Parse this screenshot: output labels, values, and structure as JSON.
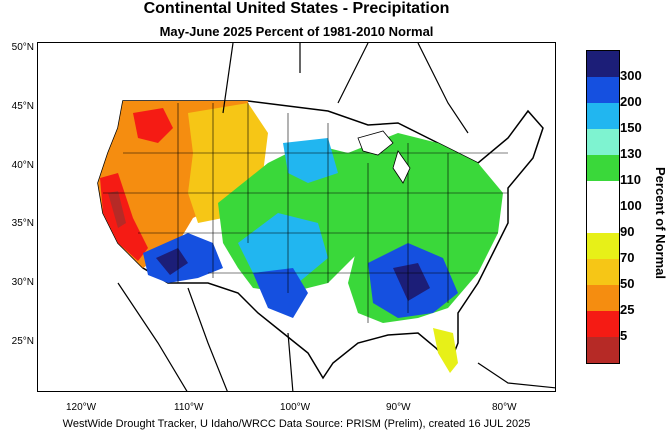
{
  "title": "Continental United States - Precipitation",
  "subtitle": "May-June 2025  Percent of 1981-2010 Normal",
  "footer": "WestWide Drought Tracker, U Idaho/WRCC Data Source: PRISM (Prelim), created 16 JUL 2025",
  "lat_labels": [
    "50°N",
    "45°N",
    "40°N",
    "35°N",
    "30°N",
    "25°N"
  ],
  "lon_labels": [
    "120°W",
    "110°W",
    "100°W",
    "90°W",
    "80°W"
  ],
  "legend": {
    "title": "Percent of Normal",
    "colors": [
      "#1c1e78",
      "#1550e0",
      "#21b6f0",
      "#7ef3d0",
      "#3ad83a",
      "#ffffff",
      "#ffffff",
      "#e7f018",
      "#f6c616",
      "#f58d10",
      "#f51b14",
      "#b62a26"
    ],
    "labels": [
      "300",
      "200",
      "150",
      "130",
      "110",
      "100",
      "90",
      "70",
      "50",
      "25",
      "5"
    ]
  },
  "map": {
    "colors": {
      "very_dry": "#b62a26",
      "dry": "#f51b14",
      "moderately_dry": "#f58d10",
      "slightly_dry": "#f6c616",
      "near_normal_dry": "#e7f018",
      "normal": "#ffffff",
      "wet": "#3ad83a",
      "wetter": "#7ef3d0",
      "very_wet": "#21b6f0",
      "extremely_wet": "#1550e0",
      "extreme": "#1c1e78"
    }
  }
}
